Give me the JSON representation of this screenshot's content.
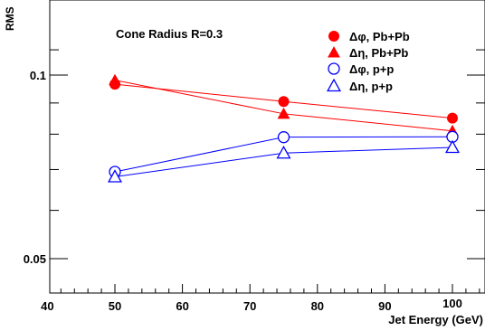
{
  "chart_data": {
    "type": "line",
    "title": "",
    "annotation": "Cone Radius R=0.3",
    "xlabel": "Jet Energy (GeV)",
    "ylabel": "RMS",
    "xlim": [
      40,
      105
    ],
    "ylim": [
      0.04,
      0.115
    ],
    "x_ticks": [
      40,
      50,
      60,
      70,
      80,
      90,
      100
    ],
    "y_tick_labels": [
      {
        "value": 0.1,
        "text": "0.1"
      },
      {
        "value": 0.05,
        "text": "0.05"
      }
    ],
    "grid": false,
    "legend_position": "top-right",
    "series": [
      {
        "name": "Δφ, Pb+Pb",
        "color": "#ff0000",
        "marker": "filled-circle",
        "x": [
          50,
          75,
          100
        ],
        "y": [
          0.0966,
          0.0905,
          0.085
        ]
      },
      {
        "name": "Δη, Pb+Pb",
        "color": "#ff0000",
        "marker": "filled-triangle",
        "x": [
          50,
          75,
          100
        ],
        "y": [
          0.0981,
          0.0864,
          0.081
        ]
      },
      {
        "name": "Δφ, p+p",
        "color": "#0000ff",
        "marker": "open-circle",
        "x": [
          50,
          75,
          100
        ],
        "y": [
          0.0694,
          0.0791,
          0.0792
        ]
      },
      {
        "name": "Δη, p+p",
        "color": "#0000ff",
        "marker": "open-triangle",
        "x": [
          50,
          75,
          100
        ],
        "y": [
          0.0681,
          0.0745,
          0.0761
        ]
      }
    ]
  }
}
